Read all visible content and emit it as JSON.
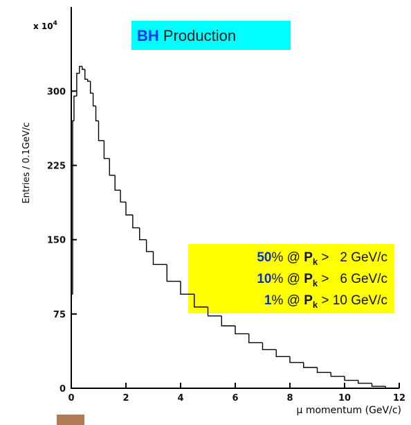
{
  "chart_data": {
    "type": "histogram",
    "title": {
      "highlight": "BH",
      "rest": "Production"
    },
    "y_multiplier": {
      "base": "x 10",
      "exp": "4"
    },
    "ylabel": "Entries / 0.1GeV/c",
    "xlabel": "μ momentum  (GeV/c)",
    "bins": [
      0,
      0.05,
      0.1,
      0.2,
      0.3,
      0.4,
      0.5,
      0.6,
      0.7,
      0.8,
      0.9,
      1.0,
      1.2,
      1.4,
      1.6,
      1.8,
      2.0,
      2.25,
      2.5,
      2.75,
      3,
      3.5,
      4,
      4.5,
      5,
      5.5,
      6,
      6.5,
      7,
      7.5,
      8,
      8.5,
      9,
      9.5,
      10,
      10.5,
      11,
      11.5,
      12
    ],
    "counts": [
      95,
      270,
      295,
      318,
      325,
      322,
      312,
      310,
      298,
      285,
      270,
      250,
      232,
      215,
      200,
      188,
      175,
      162,
      150,
      138,
      125,
      108,
      95,
      82,
      73,
      63,
      55,
      46,
      39,
      32,
      26,
      21,
      16,
      12,
      8,
      5,
      2,
      0
    ],
    "color": "#000000",
    "xlim": [
      0,
      12
    ],
    "xticks": [
      0,
      2,
      4,
      6,
      8,
      10,
      12
    ],
    "ylim": [
      0,
      385
    ],
    "yticks": [
      0,
      75,
      150,
      225,
      300
    ],
    "annotations": [
      {
        "pct": "50",
        "mid": "% @ ",
        "p": "P",
        "sub": "k",
        "tail": " >   2 GeV/c"
      },
      {
        "pct": "10",
        "mid": "% @ ",
        "p": "P",
        "sub": "k",
        "tail": " >   6 GeV/c"
      },
      {
        "pct": "1",
        "mid": "% @ ",
        "p": "P",
        "sub": "k",
        "tail": " > 10 GeV/c"
      }
    ]
  }
}
